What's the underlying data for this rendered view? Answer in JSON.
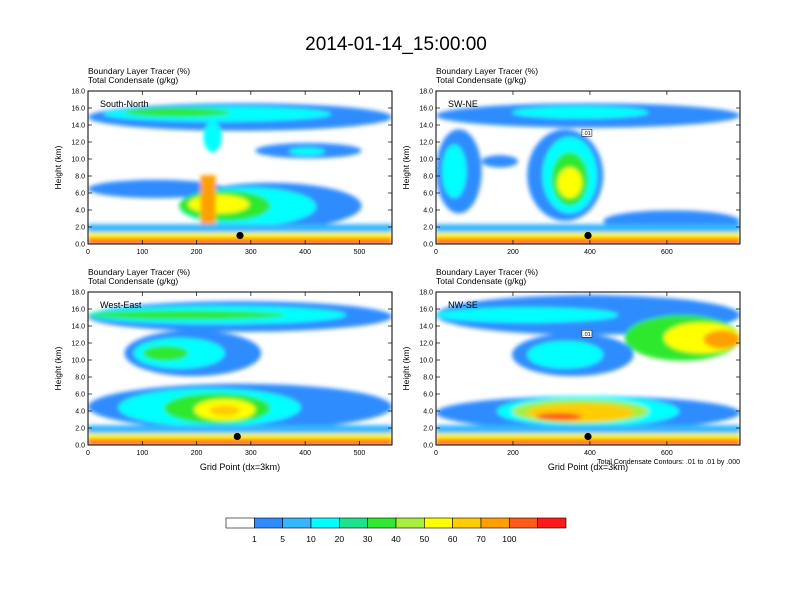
{
  "figure": {
    "title": "2014-01-14_15:00:00",
    "footnote": "Total Condensate Contours: .01 to .01 by .000"
  },
  "colorbar": {
    "labels": [
      "1",
      "5",
      "10",
      "20",
      "30",
      "40",
      "50",
      "60",
      "70",
      "100"
    ],
    "colors": [
      "#ffffff",
      "#2f8cff",
      "#35b6ff",
      "#00ffff",
      "#1de38c",
      "#2fe82f",
      "#a8ee3c",
      "#ffff00",
      "#ffcc00",
      "#ffa000",
      "#ff5a1a",
      "#ff1a1a"
    ]
  },
  "chart_data": [
    {
      "type": "heatmap",
      "label": "South-North",
      "title_lines": [
        "Boundary Layer Tracer   (%)",
        "Total Condensate   (g/kg)"
      ],
      "ylabel": "Height (km)",
      "xlabel": "",
      "xlim": [
        0,
        560
      ],
      "ylim": [
        0,
        18
      ],
      "x_ticks": [
        "0",
        "100",
        "200",
        "300",
        "400",
        "500"
      ],
      "y_ticks": [
        "0.0",
        "2.0",
        "4.0",
        "6.0",
        "8.0",
        "10.0",
        "12.0",
        "14.0",
        "16.0",
        "18.0"
      ],
      "marker": {
        "x": 280,
        "y": 1.0
      },
      "contour_label": ""
    },
    {
      "type": "heatmap",
      "label": "SW-NE",
      "title_lines": [
        "Boundary Layer Tracer   (%)",
        "Total Condensate   (g/kg)"
      ],
      "ylabel": "Height (km)",
      "xlabel": "",
      "xlim": [
        0,
        790
      ],
      "ylim": [
        0,
        18
      ],
      "x_ticks": [
        "0",
        "200",
        "400",
        "600"
      ],
      "y_ticks": [
        "0.0",
        "2.0",
        "4.0",
        "6.0",
        "8.0",
        "10.0",
        "12.0",
        "14.0",
        "16.0",
        "18.0"
      ],
      "marker": {
        "x": 395,
        "y": 1.0
      },
      "contour_label": ".01"
    },
    {
      "type": "heatmap",
      "label": "West-East",
      "title_lines": [
        "Boundary Layer Tracer   (%)",
        "Total Condensate   (g/kg)"
      ],
      "ylabel": "Height (km)",
      "xlabel": "Grid Point (dx=3km)",
      "xlim": [
        0,
        560
      ],
      "ylim": [
        0,
        18
      ],
      "x_ticks": [
        "0",
        "100",
        "200",
        "300",
        "400",
        "500"
      ],
      "y_ticks": [
        "0.0",
        "2.0",
        "4.0",
        "6.0",
        "8.0",
        "10.0",
        "12.0",
        "14.0",
        "16.0",
        "18.0"
      ],
      "marker": {
        "x": 275,
        "y": 1.0
      },
      "contour_label": ""
    },
    {
      "type": "heatmap",
      "label": "NW-SE",
      "title_lines": [
        "Boundary Layer Tracer   (%)",
        "Total Condensate   (g/kg)"
      ],
      "ylabel": "Height (km)",
      "xlabel": "Grid Point (dx=3km)",
      "xlim": [
        0,
        790
      ],
      "ylim": [
        0,
        18
      ],
      "x_ticks": [
        "0",
        "200",
        "400",
        "600"
      ],
      "y_ticks": [
        "0.0",
        "2.0",
        "4.0",
        "6.0",
        "8.0",
        "10.0",
        "12.0",
        "14.0",
        "16.0",
        "18.0"
      ],
      "marker": {
        "x": 395,
        "y": 1.0
      },
      "contour_label": ".01"
    }
  ]
}
